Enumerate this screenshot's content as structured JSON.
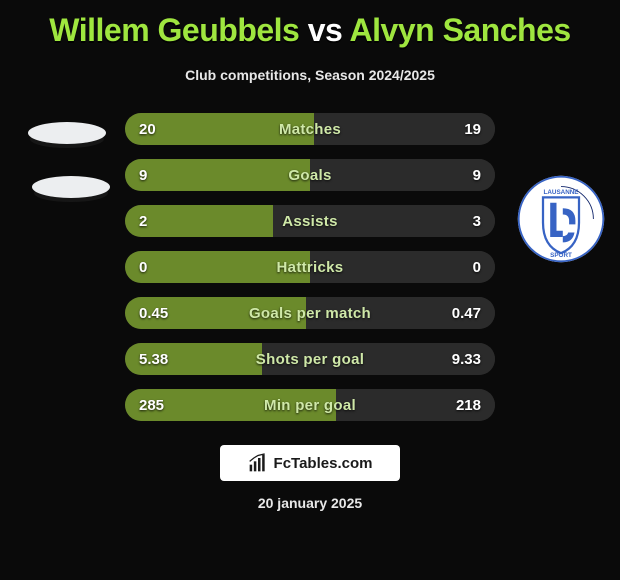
{
  "title": {
    "player1": "Willem Geubbels",
    "vs": "vs",
    "player2": "Alvyn Sanches"
  },
  "subtitle": "Club competitions, Season 2024/2025",
  "colors": {
    "accent_green": "#9fe63f",
    "bar_green": "#6b8a2b",
    "bar_dark": "#2b2b2b",
    "text_white": "#ffffff",
    "label_green": "#cfe8a8"
  },
  "crest": {
    "outer": "#ffffff",
    "ring": "#3763c4",
    "shield_fill": "#ffffff",
    "shield_border": "#3763c4",
    "letters": "#12266b",
    "text": "LAUSANNE SPORT"
  },
  "bars": [
    {
      "label": "Matches",
      "left": "20",
      "right": "19",
      "left_pct": 51,
      "right_pct": 49
    },
    {
      "label": "Goals",
      "left": "9",
      "right": "9",
      "left_pct": 50,
      "right_pct": 50
    },
    {
      "label": "Assists",
      "left": "2",
      "right": "3",
      "left_pct": 40,
      "right_pct": 60
    },
    {
      "label": "Hattricks",
      "left": "0",
      "right": "0",
      "left_pct": 50,
      "right_pct": 50
    },
    {
      "label": "Goals per match",
      "left": "0.45",
      "right": "0.47",
      "left_pct": 49,
      "right_pct": 51
    },
    {
      "label": "Shots per goal",
      "left": "5.38",
      "right": "9.33",
      "left_pct": 37,
      "right_pct": 63
    },
    {
      "label": "Min per goal",
      "left": "285",
      "right": "218",
      "left_pct": 57,
      "right_pct": 43
    }
  ],
  "footer": {
    "brand": "FcTables.com",
    "date": "20 january 2025"
  }
}
